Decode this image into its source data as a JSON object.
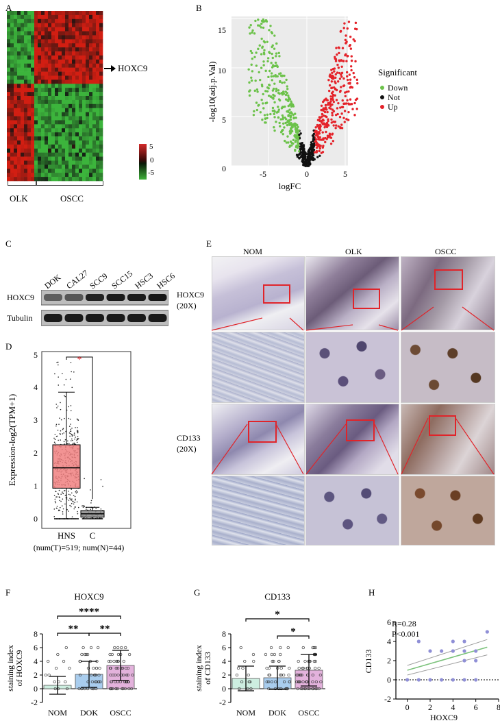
{
  "panels": {
    "A": "A",
    "B": "B",
    "C": "C",
    "D": "D",
    "E": "E",
    "F": "F",
    "G": "G",
    "H": "H"
  },
  "panel_a": {
    "arrow_label": "HOXC9",
    "group_labels": [
      "OLK",
      "OSCC"
    ],
    "scale_ticks": [
      "5",
      "0",
      "-5"
    ]
  },
  "panel_b": {
    "xlabel": "logFC",
    "ylabel": "-log10(adj.p.Val)",
    "xticks": [
      "-5",
      "0",
      "5"
    ],
    "yticks": [
      "0",
      "5",
      "10",
      "15"
    ],
    "legend_title": "Significant",
    "legend": [
      {
        "label": "Down",
        "color": "#6cc24a"
      },
      {
        "label": "Not",
        "color": "#111111"
      },
      {
        "label": "Up",
        "color": "#e4232a"
      }
    ]
  },
  "panel_c": {
    "lanes": [
      "DOK",
      "CAL27",
      "SCC9",
      "SCC15",
      "HSC3",
      "HSC6"
    ],
    "rows": [
      "HOXC9",
      "Tubulin"
    ]
  },
  "panel_d": {
    "ylabel": "Expression-log2(TPM+1)",
    "yticks": [
      "0",
      "1",
      "2",
      "3",
      "4",
      "5"
    ],
    "groups": [
      "HNS",
      "C"
    ],
    "footnote": "(num(T)=519; num(N)=44)",
    "sig": "*"
  },
  "panel_e": {
    "columns": [
      "NOM",
      "OLK",
      "OSCC"
    ],
    "row_labels": [
      {
        "name": "HOXC9",
        "mag": "(20X)"
      },
      {
        "name": "CD133",
        "mag": "(20X)"
      }
    ]
  },
  "panel_f": {
    "title": "HOXC9",
    "ylabel_1": "staining index",
    "ylabel_2": "of HOXC9",
    "yticks": [
      "-2",
      "0",
      "2",
      "4",
      "6",
      "8"
    ],
    "groups": [
      "NOM",
      "DOK",
      "OSCC"
    ],
    "sig": [
      "****",
      "**",
      "**"
    ]
  },
  "panel_g": {
    "title": "CD133",
    "ylabel_1": "staining index",
    "ylabel_2": "of CD133",
    "yticks": [
      "-2",
      "0",
      "2",
      "4",
      "6",
      "8"
    ],
    "groups": [
      "NOM",
      "DOK",
      "OSCC"
    ],
    "sig": [
      "*",
      "*"
    ]
  },
  "panel_h": {
    "stat_r": "R=0.28",
    "stat_p": "P<0.001",
    "xlabel": "HOXC9",
    "ylabel": "CD133",
    "xticks": [
      "0",
      "2",
      "4",
      "6",
      "8"
    ],
    "yticks": [
      "-2",
      "0",
      "2",
      "4",
      "6"
    ]
  },
  "chart_data": [
    {
      "type": "bar",
      "panel": "F",
      "title": "HOXC9",
      "categories": [
        "NOM",
        "DOK",
        "OSCC"
      ],
      "values": [
        0.5,
        2.1,
        3.4
      ],
      "errors": [
        1.3,
        1.9,
        2.2
      ],
      "colors": [
        "#cdeee0",
        "#a9cdee",
        "#e3b2dc"
      ],
      "ylim": [
        -2,
        8
      ]
    },
    {
      "type": "bar",
      "panel": "G",
      "title": "CD133",
      "categories": [
        "NOM",
        "DOK",
        "OSCC"
      ],
      "values": [
        1.5,
        1.6,
        2.7
      ],
      "errors": [
        1.8,
        1.7,
        2.3
      ],
      "colors": [
        "#cdeee0",
        "#a9cdee",
        "#e3b2dc"
      ],
      "ylim": [
        -2,
        8
      ]
    },
    {
      "type": "scatter",
      "panel": "H",
      "points": [
        [
          0,
          0
        ],
        [
          1,
          4
        ],
        [
          1,
          0
        ],
        [
          2,
          3
        ],
        [
          2,
          0
        ],
        [
          3,
          3
        ],
        [
          3,
          0
        ],
        [
          4,
          4
        ],
        [
          4,
          3
        ],
        [
          4,
          0
        ],
        [
          5,
          4
        ],
        [
          5,
          3
        ],
        [
          5,
          2
        ],
        [
          5,
          0
        ],
        [
          6,
          3
        ],
        [
          6,
          2
        ],
        [
          6,
          0
        ],
        [
          7,
          5
        ]
      ],
      "fit": {
        "x0": 0,
        "y0": 1.0,
        "x1": 7,
        "y1": 3.4
      },
      "xlim": [
        -1,
        8
      ],
      "ylim": [
        -2,
        6
      ]
    },
    {
      "type": "box",
      "panel": "D",
      "groups": [
        {
          "name": "HNS",
          "q1": 0.93,
          "median": 1.55,
          "q3": 2.25,
          "whisker_low": 0.0,
          "whisker_high": 3.85
        },
        {
          "name": "C",
          "q1": 0.05,
          "median": 0.15,
          "q3": 0.25,
          "whisker_low": 0.0,
          "whisker_high": 0.35
        }
      ],
      "ylim": [
        0,
        5
      ]
    }
  ]
}
